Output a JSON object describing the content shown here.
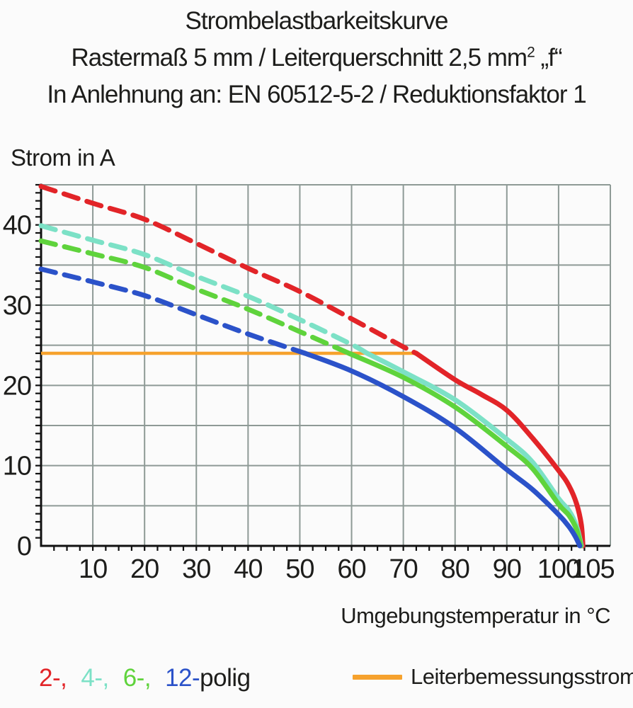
{
  "title": {
    "line1": "Strombelastbarkeitskurve",
    "line2_pre": "Rastermaß 5 mm / Leiterquerschnitt 2,5 mm",
    "line2_sup": "2",
    "line2_post": " „f“",
    "line3": "In Anlehnung an: EN 60512-5-2 / Reduktionsfaktor 1"
  },
  "legend": {
    "pole_variants": [
      {
        "label": "2-,",
        "color": "#e22428"
      },
      {
        "label": "4-,",
        "color": "#7ce1c6"
      },
      {
        "label": "6-,",
        "color": "#5fd33c"
      },
      {
        "label": "12-",
        "color": "#2b52c9"
      }
    ],
    "pole_suffix": "polig",
    "reference_label": "Leiterbemessungsstrom",
    "reference_color": "#f6a22d"
  },
  "chart_data": {
    "type": "line",
    "title": "Strombelastbarkeitskurve",
    "xlabel": "Umgebungstemperatur in °C",
    "ylabel": "Strom in A",
    "xlim": [
      0,
      110
    ],
    "ylim": [
      0,
      45
    ],
    "xticks": [
      10,
      20,
      30,
      40,
      50,
      60,
      70,
      80,
      90,
      100,
      105
    ],
    "yticks": [
      0,
      10,
      20,
      30,
      40
    ],
    "x_grid_step": 10,
    "y_grid_step": 5,
    "x_minor_tick_step": 2.5,
    "y_minor_tick_step": 1,
    "grid": true,
    "grid_color": "#8e9a96",
    "axis_color": "#111111",
    "legend_position": "bottom",
    "reference_line": {
      "name": "Leiterbemessungsstrom",
      "value": 24,
      "x_start": 0,
      "x_end": 72.5,
      "color": "#f6a22d"
    },
    "series": [
      {
        "name": "2-polig",
        "color": "#e22428",
        "points_dashed": [
          [
            0,
            44.8
          ],
          [
            10,
            42.7
          ],
          [
            20,
            40.7
          ],
          [
            30,
            37.7
          ],
          [
            40,
            34.6
          ],
          [
            50,
            31.7
          ],
          [
            60,
            28.3
          ],
          [
            70,
            24.8
          ],
          [
            72.5,
            24
          ]
        ],
        "points_solid": [
          [
            72.5,
            24
          ],
          [
            80,
            20.7
          ],
          [
            85,
            18.9
          ],
          [
            90,
            16.9
          ],
          [
            95,
            13.4
          ],
          [
            100,
            9.4
          ],
          [
            102,
            7.5
          ],
          [
            103.5,
            5.2
          ],
          [
            104.4,
            2.6
          ],
          [
            104.7,
            0
          ]
        ]
      },
      {
        "name": "4-polig",
        "color": "#7ce1c6",
        "points_dashed": [
          [
            0,
            39.9
          ],
          [
            10,
            38.1
          ],
          [
            20,
            36.3
          ],
          [
            30,
            33.6
          ],
          [
            40,
            31.1
          ],
          [
            50,
            28.2
          ],
          [
            60,
            25.1
          ],
          [
            63,
            24
          ]
        ],
        "points_solid": [
          [
            63,
            24
          ],
          [
            70,
            21.7
          ],
          [
            80,
            18.2
          ],
          [
            90,
            13.3
          ],
          [
            95,
            10.4
          ],
          [
            100,
            5.9
          ],
          [
            102,
            4.4
          ],
          [
            103.5,
            2.4
          ],
          [
            104.4,
            0
          ]
        ]
      },
      {
        "name": "6-polig",
        "color": "#5fd33c",
        "points_dashed": [
          [
            0,
            38.0
          ],
          [
            10,
            36.4
          ],
          [
            20,
            34.7
          ],
          [
            30,
            32.0
          ],
          [
            40,
            29.5
          ],
          [
            50,
            26.7
          ],
          [
            59.5,
            24
          ]
        ],
        "points_solid": [
          [
            59.5,
            24
          ],
          [
            70,
            21.0
          ],
          [
            80,
            17.3
          ],
          [
            90,
            12.4
          ],
          [
            95,
            9.6
          ],
          [
            100,
            5.2
          ],
          [
            102,
            3.8
          ],
          [
            103.5,
            2.0
          ],
          [
            104.3,
            0
          ]
        ]
      },
      {
        "name": "12-polig",
        "color": "#2b52c9",
        "points_dashed": [
          [
            0,
            34.5
          ],
          [
            10,
            32.9
          ],
          [
            20,
            31.2
          ],
          [
            30,
            28.8
          ],
          [
            40,
            26.4
          ],
          [
            51,
            24
          ]
        ],
        "points_solid": [
          [
            51,
            24
          ],
          [
            60,
            21.8
          ],
          [
            70,
            18.6
          ],
          [
            80,
            14.7
          ],
          [
            90,
            9.5
          ],
          [
            95,
            7.0
          ],
          [
            100,
            3.9
          ],
          [
            102,
            2.4
          ],
          [
            103.2,
            1.2
          ],
          [
            104.1,
            0
          ]
        ]
      }
    ]
  }
}
